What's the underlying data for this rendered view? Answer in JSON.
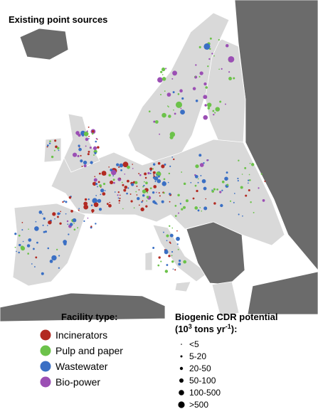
{
  "title": "Existing point sources",
  "facility_legend": {
    "title": "Facility type:",
    "items": [
      {
        "label": "Incinerators",
        "color": "#b22a22"
      },
      {
        "label": "Pulp and paper",
        "color": "#6cc24a"
      },
      {
        "label": "Wastewater",
        "color": "#3a6fc4"
      },
      {
        "label": "Bio-power",
        "color": "#9b4fb4"
      }
    ]
  },
  "size_legend": {
    "title": "Biogenic CDR potential",
    "unit": {
      "open": "(10",
      "exp1": "3",
      "mid": " tons yr",
      "exp2": "-1",
      "close": "):"
    },
    "items": [
      "<5",
      "5-20",
      "20-50",
      "50-100",
      "100-500",
      ">500"
    ]
  }
}
